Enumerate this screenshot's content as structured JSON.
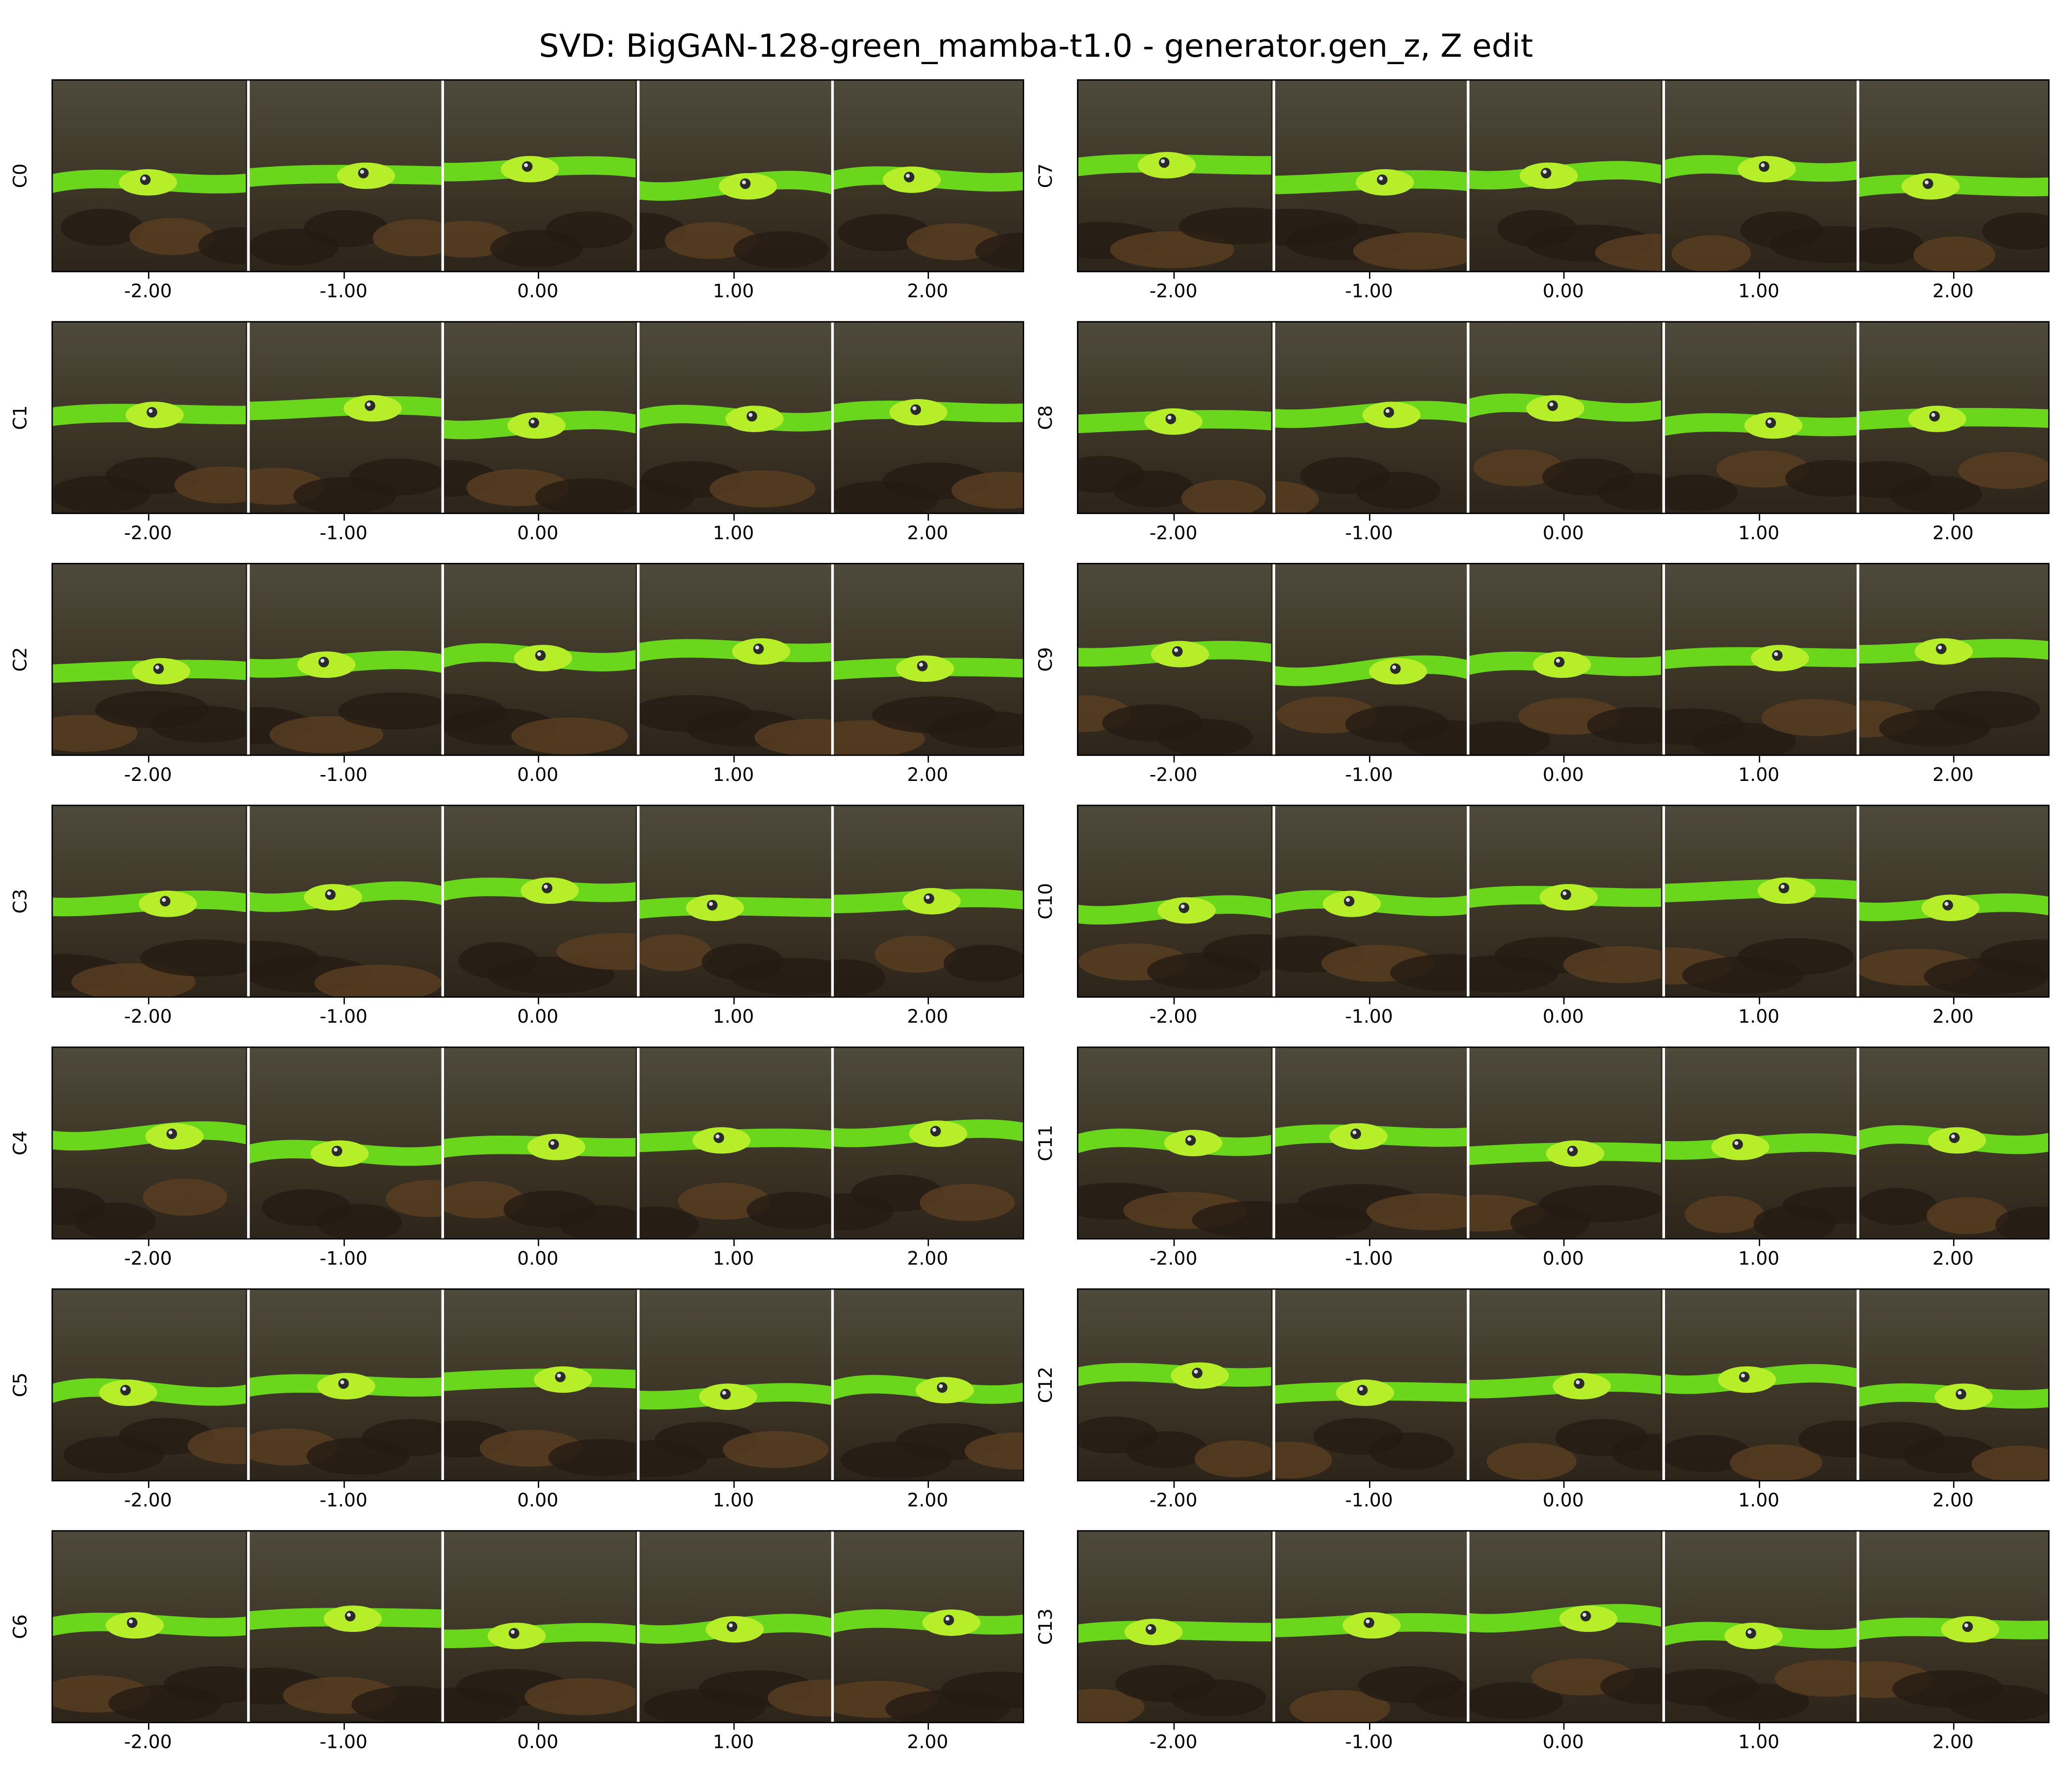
{
  "title": "SVD: BigGAN-128-green_mamba-t1.0 - generator.gen_z, Z edit",
  "x_tick_labels": [
    "-2.00",
    "-1.00",
    "0.00",
    "1.00",
    "2.00"
  ],
  "colors": {
    "snake_green": "#6ad61c",
    "snake_highlight": "#b6ef2a",
    "background_top": "#4e4a3b",
    "foliage_dark": "#2c2419",
    "separator": "#ffffff"
  },
  "panels": [
    {
      "label": "C0"
    },
    {
      "label": "C1"
    },
    {
      "label": "C2"
    },
    {
      "label": "C3"
    },
    {
      "label": "C4"
    },
    {
      "label": "C5"
    },
    {
      "label": "C6"
    },
    {
      "label": "C7"
    },
    {
      "label": "C8"
    },
    {
      "label": "C9"
    },
    {
      "label": "C10"
    },
    {
      "label": "C11"
    },
    {
      "label": "C12"
    },
    {
      "label": "C13"
    }
  ]
}
